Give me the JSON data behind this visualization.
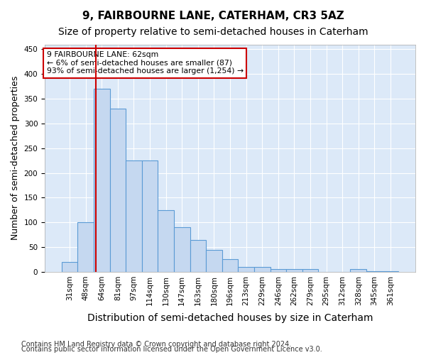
{
  "title": "9, FAIRBOURNE LANE, CATERHAM, CR3 5AZ",
  "subtitle": "Size of property relative to semi-detached houses in Caterham",
  "xlabel": "Distribution of semi-detached houses by size in Caterham",
  "ylabel": "Number of semi-detached properties",
  "bin_labels": [
    "31sqm",
    "48sqm",
    "64sqm",
    "81sqm",
    "97sqm",
    "114sqm",
    "130sqm",
    "147sqm",
    "163sqm",
    "180sqm",
    "196sqm",
    "213sqm",
    "229sqm",
    "246sqm",
    "262sqm",
    "279sqm",
    "295sqm",
    "312sqm",
    "328sqm",
    "345sqm",
    "361sqm"
  ],
  "bar_heights": [
    20,
    100,
    370,
    330,
    225,
    225,
    125,
    90,
    65,
    45,
    25,
    10,
    10,
    5,
    5,
    5,
    0,
    0,
    5,
    2,
    2
  ],
  "bar_color": "#c5d8f0",
  "bar_edgecolor": "#5b9bd5",
  "redline_x": 1.65,
  "annotation_text": "9 FAIRBOURNE LANE: 62sqm\n← 6% of semi-detached houses are smaller (87)\n93% of semi-detached houses are larger (1,254) →",
  "annotation_box_color": "#ffffff",
  "annotation_box_edgecolor": "#cc0000",
  "ylim": [
    0,
    460
  ],
  "yticks": [
    0,
    50,
    100,
    150,
    200,
    250,
    300,
    350,
    400,
    450
  ],
  "footer1": "Contains HM Land Registry data © Crown copyright and database right 2024.",
  "footer2": "Contains public sector information licensed under the Open Government Licence v3.0.",
  "bg_color": "#dce9f8",
  "grid_color": "#ffffff",
  "title_fontsize": 11,
  "subtitle_fontsize": 10,
  "axis_label_fontsize": 9,
  "tick_fontsize": 7.5,
  "footer_fontsize": 7
}
